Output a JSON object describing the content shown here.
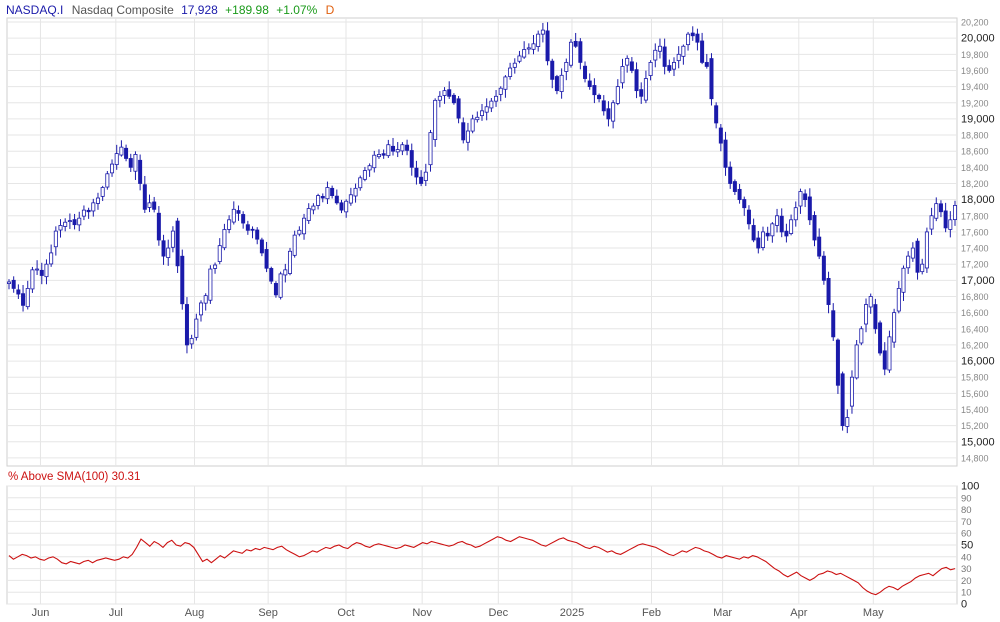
{
  "header": {
    "symbol": "NASDAQ.I",
    "name": "Nasdaq Composite",
    "price": "17,928",
    "change": "+189.98",
    "change_pct": "+1.07%",
    "period": "D"
  },
  "indicator": {
    "label": "% Above SMA(100)",
    "value": "30.31"
  },
  "colors": {
    "candle": "#1a1aaa",
    "indicator_line": "#cc1111",
    "grid": "#e6e6e6",
    "axis_text": "#555555",
    "symbol": "#1a1aaa",
    "price": "#1a1aaa",
    "change": "#1a9a1a",
    "period": "#e06010",
    "indicator_label": "#cc1111"
  },
  "chart_data": [
    {
      "type": "candlestick",
      "series_name": "Nasdaq Composite",
      "ylim": [
        14700,
        20250
      ],
      "y_ticks": [
        14800,
        15000,
        15200,
        15400,
        15600,
        15800,
        16000,
        16200,
        16400,
        16600,
        16800,
        17000,
        17200,
        17400,
        17600,
        17800,
        18000,
        18200,
        18400,
        18600,
        18800,
        19000,
        19200,
        19400,
        19600,
        19800,
        20000,
        20200
      ],
      "y_tick_labels": [
        "14,800",
        "15,000",
        "15,200",
        "15,400",
        "15,600",
        "15,800",
        "16,000",
        "16,200",
        "16,400",
        "16,600",
        "16,800",
        "17,000",
        "17,200",
        "17,400",
        "17,600",
        "17,800",
        "18,000",
        "18,200",
        "18,400",
        "18,600",
        "18,800",
        "19,000",
        "19,200",
        "19,400",
        "19,600",
        "19,800",
        "20,000",
        "20,200"
      ],
      "y_major_labels": [
        "15,000",
        "16,000",
        "17,000",
        "18,000",
        "19,000",
        "20,000"
      ],
      "x_tick_labels": [
        "Jun",
        "Jul",
        "Aug",
        "Sep",
        "Oct",
        "Nov",
        "Dec",
        "2025",
        "Feb",
        "Mar",
        "Apr",
        "May"
      ],
      "x_tick_positions": [
        0.04,
        0.13,
        0.224,
        0.312,
        0.405,
        0.496,
        0.587,
        0.675,
        0.77,
        0.855,
        0.946,
        1.035
      ],
      "x_range": [
        0,
        1.135
      ],
      "closes": [
        16980,
        16900,
        16830,
        16690,
        16900,
        17130,
        17140,
        17060,
        17200,
        17340,
        17610,
        17680,
        17720,
        17740,
        17690,
        17770,
        17870,
        17850,
        17960,
        18020,
        18150,
        18320,
        18440,
        18570,
        18650,
        18510,
        18400,
        18560,
        18200,
        17880,
        17960,
        17880,
        17500,
        17300,
        17400,
        17610,
        17180,
        16710,
        16200,
        16280,
        16520,
        16720,
        16810,
        17140,
        17190,
        17430,
        17630,
        17750,
        17880,
        17830,
        17710,
        17620,
        17620,
        17510,
        17340,
        17150,
        16990,
        16820,
        17080,
        17130,
        17360,
        17560,
        17620,
        17770,
        17890,
        17920,
        18050,
        18020,
        18150,
        18050,
        17960,
        17870,
        17980,
        18060,
        18140,
        18270,
        18360,
        18420,
        18550,
        18560,
        18550,
        18680,
        18600,
        18620,
        18680,
        18610,
        18400,
        18280,
        18200,
        18340,
        18830,
        19230,
        19280,
        19350,
        19280,
        19200,
        19010,
        18740,
        18850,
        19000,
        19020,
        19100,
        19150,
        19220,
        19280,
        19380,
        19520,
        19630,
        19690,
        19780,
        19860,
        19880,
        19930,
        20050,
        20100,
        19720,
        19490,
        19350,
        19540,
        19700,
        19950,
        19900,
        19700,
        19500,
        19400,
        19300,
        19250,
        19100,
        19000,
        19200,
        19400,
        19650,
        19750,
        19600,
        19350,
        19280,
        19500,
        19700,
        19850,
        19900,
        19650,
        19600,
        19700,
        19800,
        19900,
        20050,
        20030,
        19950,
        19700,
        19650,
        19250,
        18950,
        18700,
        18400,
        18200,
        18100,
        18000,
        17900,
        17700,
        17500,
        17400,
        17600,
        17550,
        17700,
        17800,
        17600,
        17550,
        17750,
        17900,
        18100,
        18000,
        17750,
        17500,
        17300,
        17000,
        16700,
        16300,
        15700,
        15200,
        15300,
        15800,
        16200,
        16400,
        16700,
        16800,
        16400,
        16100,
        15900,
        16300,
        16600,
        16900,
        17150,
        17300,
        17400,
        17100,
        17200,
        17600,
        17800,
        17950,
        17850,
        17650,
        17750,
        17928
      ],
      "ohlc_note": "approximate daily closes read from chart; open/high/low derived for rendering"
    },
    {
      "type": "line",
      "series_name": "% Above SMA(100)",
      "ylim": [
        0,
        100
      ],
      "y_ticks": [
        0,
        10,
        20,
        30,
        40,
        50,
        60,
        70,
        80,
        90,
        100
      ],
      "y_tick_labels": [
        "0",
        "10",
        "20",
        "30",
        "40",
        "50",
        "60",
        "70",
        "80",
        "90",
        "100"
      ],
      "values": [
        41,
        38,
        40,
        42,
        41,
        39,
        40,
        38,
        37,
        39,
        40,
        38,
        35,
        34,
        36,
        35,
        34,
        36,
        37,
        35,
        37,
        38,
        39,
        38,
        37,
        38,
        40,
        39,
        42,
        48,
        55,
        52,
        49,
        53,
        51,
        48,
        52,
        54,
        50,
        49,
        52,
        51,
        48,
        42,
        36,
        38,
        35,
        38,
        41,
        39,
        42,
        45,
        44,
        43,
        46,
        45,
        47,
        46,
        48,
        47,
        46,
        48,
        49,
        46,
        44,
        42,
        40,
        41,
        43,
        45,
        44,
        46,
        48,
        47,
        49,
        50,
        48,
        47,
        50,
        52,
        51,
        49,
        48,
        50,
        51,
        50,
        49,
        48,
        47,
        48,
        50,
        49,
        48,
        50,
        52,
        51,
        53,
        52,
        51,
        50,
        49,
        50,
        52,
        53,
        51,
        50,
        48,
        49,
        51,
        53,
        55,
        57,
        56,
        54,
        53,
        55,
        57,
        56,
        55,
        54,
        52,
        50,
        49,
        51,
        53,
        55,
        56,
        54,
        53,
        52,
        50,
        48,
        47,
        49,
        48,
        46,
        44,
        45,
        43,
        42,
        44,
        46,
        48,
        50,
        51,
        50,
        49,
        48,
        46,
        44,
        42,
        41,
        43,
        45,
        44,
        46,
        48,
        47,
        45,
        44,
        42,
        40,
        39,
        41,
        40,
        39,
        38,
        40,
        39,
        41,
        40,
        38,
        36,
        33,
        30,
        28,
        25,
        23,
        25,
        27,
        24,
        22,
        20,
        22,
        25,
        26,
        28,
        27,
        25,
        26,
        24,
        22,
        20,
        18,
        14,
        11,
        9,
        8,
        10,
        13,
        15,
        14,
        12,
        15,
        17,
        19,
        22,
        24,
        25,
        26,
        24,
        27,
        30,
        31,
        29,
        30
      ]
    }
  ]
}
